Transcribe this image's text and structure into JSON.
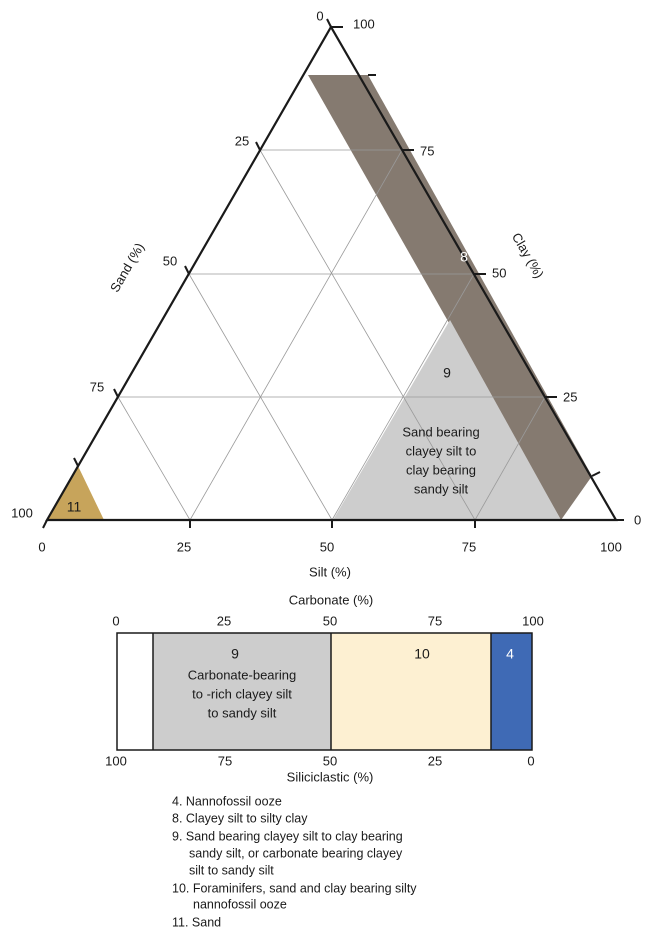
{
  "ternary": {
    "axes": {
      "sand": {
        "title": "Sand (%)",
        "ticks": [
          "0",
          "25",
          "50",
          "75",
          "100"
        ]
      },
      "clay": {
        "title": "Clay (%)",
        "ticks": [
          "100",
          "75",
          "50",
          "25",
          "0"
        ]
      },
      "silt": {
        "title": "Silt (%)",
        "ticks": [
          "0",
          "25",
          "50",
          "75",
          "100"
        ]
      }
    },
    "regions": [
      {
        "label": "8"
      },
      {
        "label": "9",
        "description": [
          "Sand bearing",
          "clayey silt to",
          "clay bearing",
          "sandy silt"
        ]
      },
      {
        "label": "11"
      }
    ]
  },
  "bar": {
    "top_title": "Carbonate (%)",
    "top_ticks": [
      "0",
      "25",
      "50",
      "75",
      "100"
    ],
    "bottom_title": "Siliciclastic (%)",
    "bottom_ticks": [
      "100",
      "75",
      "50",
      "25",
      "0"
    ],
    "segments": [
      {
        "label": "9",
        "description": [
          "Carbonate-bearing",
          "to -rich clayey silt",
          "to sandy silt"
        ]
      },
      {
        "label": "10"
      },
      {
        "label": "4"
      }
    ]
  },
  "legend": [
    [
      "4. Nannofossil ooze"
    ],
    [
      "8.  Clayey silt to silty clay"
    ],
    [
      "9.  Sand bearing clayey silt to clay bearing",
      "sandy silt, or carbonate bearing clayey",
      "silt to sandy silt"
    ],
    [
      "10. Foraminifers, sand and clay bearing silty",
      "nannofossil ooze"
    ],
    [
      "11. Sand"
    ]
  ]
}
